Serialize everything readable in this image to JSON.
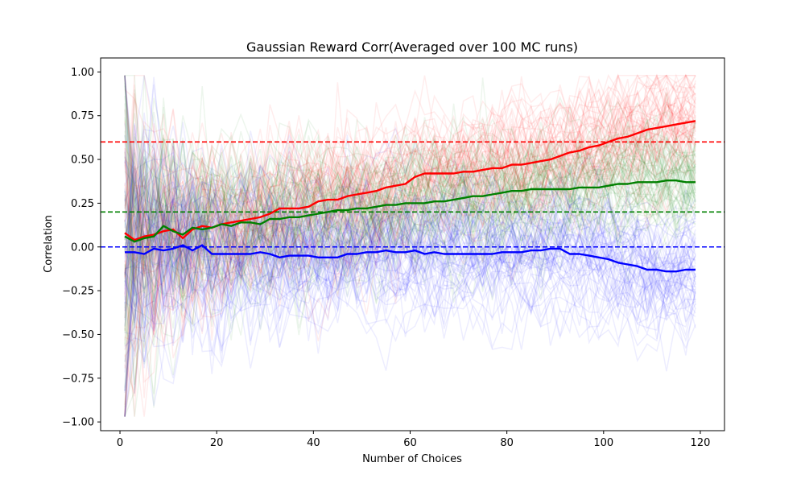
{
  "chart_data": {
    "type": "line",
    "title": "Gaussian Reward Corr(Averaged over 100 MC runs)",
    "xlabel": "Number of Choices",
    "ylabel": "Correlation",
    "xlim": [
      -4,
      125
    ],
    "ylim": [
      -1.05,
      1.08
    ],
    "x_ticks": [
      0,
      20,
      40,
      60,
      80,
      100,
      120
    ],
    "x_tick_labels": [
      "0",
      "20",
      "40",
      "60",
      "80",
      "100",
      "120"
    ],
    "y_ticks": [
      -1.0,
      -0.75,
      -0.5,
      -0.25,
      0.0,
      0.25,
      0.5,
      0.75,
      1.0
    ],
    "y_tick_labels": [
      "−1.00",
      "−0.75",
      "−0.50",
      "−0.25",
      "0.00",
      "0.25",
      "0.50",
      "0.75",
      "1.00"
    ],
    "grid": false,
    "reference_lines": [
      {
        "y": 0.6,
        "color": "#ff0000",
        "style": "dashed"
      },
      {
        "y": 0.2,
        "color": "#008000",
        "style": "dashed"
      },
      {
        "y": 0.0,
        "color": "#0000ff",
        "style": "dashed"
      }
    ],
    "runs": {
      "count_per_series": 100,
      "x_range": [
        1,
        119
      ],
      "opacity": 0.07
    },
    "series": [
      {
        "color": "#ff0000",
        "x": [
          1,
          3,
          5,
          7,
          9,
          11,
          13,
          15,
          17,
          19,
          21,
          23,
          25,
          27,
          29,
          31,
          33,
          35,
          37,
          39,
          41,
          43,
          45,
          47,
          49,
          51,
          53,
          55,
          57,
          59,
          61,
          63,
          65,
          67,
          69,
          71,
          73,
          75,
          77,
          79,
          81,
          83,
          85,
          87,
          89,
          91,
          93,
          95,
          97,
          99,
          101,
          103,
          105,
          107,
          109,
          111,
          113,
          115,
          117,
          119
        ],
        "values": [
          0.08,
          0.04,
          0.06,
          0.07,
          0.09,
          0.1,
          0.05,
          0.1,
          0.12,
          0.11,
          0.13,
          0.14,
          0.15,
          0.16,
          0.17,
          0.19,
          0.22,
          0.22,
          0.22,
          0.23,
          0.26,
          0.27,
          0.27,
          0.29,
          0.3,
          0.31,
          0.32,
          0.34,
          0.35,
          0.36,
          0.4,
          0.42,
          0.42,
          0.42,
          0.42,
          0.43,
          0.43,
          0.44,
          0.45,
          0.45,
          0.47,
          0.47,
          0.48,
          0.49,
          0.5,
          0.52,
          0.54,
          0.55,
          0.57,
          0.58,
          0.6,
          0.62,
          0.63,
          0.65,
          0.67,
          0.68,
          0.69,
          0.7,
          0.71,
          0.72
        ]
      },
      {
        "color": "#008000",
        "x": [
          1,
          3,
          5,
          7,
          9,
          11,
          13,
          15,
          17,
          19,
          21,
          23,
          25,
          27,
          29,
          31,
          33,
          35,
          37,
          39,
          41,
          43,
          45,
          47,
          49,
          51,
          53,
          55,
          57,
          59,
          61,
          63,
          65,
          67,
          69,
          71,
          73,
          75,
          77,
          79,
          81,
          83,
          85,
          87,
          89,
          91,
          93,
          95,
          97,
          99,
          101,
          103,
          105,
          107,
          109,
          111,
          113,
          115,
          117,
          119
        ],
        "values": [
          0.06,
          0.03,
          0.05,
          0.06,
          0.12,
          0.09,
          0.07,
          0.11,
          0.1,
          0.11,
          0.13,
          0.12,
          0.14,
          0.14,
          0.13,
          0.16,
          0.16,
          0.17,
          0.17,
          0.18,
          0.19,
          0.2,
          0.21,
          0.21,
          0.22,
          0.22,
          0.23,
          0.24,
          0.24,
          0.25,
          0.25,
          0.25,
          0.26,
          0.26,
          0.27,
          0.28,
          0.29,
          0.29,
          0.3,
          0.31,
          0.32,
          0.32,
          0.33,
          0.33,
          0.33,
          0.33,
          0.33,
          0.34,
          0.34,
          0.34,
          0.35,
          0.36,
          0.36,
          0.37,
          0.37,
          0.37,
          0.38,
          0.38,
          0.37,
          0.37
        ]
      },
      {
        "color": "#0000ff",
        "x": [
          1,
          3,
          5,
          7,
          9,
          11,
          13,
          15,
          17,
          19,
          21,
          23,
          25,
          27,
          29,
          31,
          33,
          35,
          37,
          39,
          41,
          43,
          45,
          47,
          49,
          51,
          53,
          55,
          57,
          59,
          61,
          63,
          65,
          67,
          69,
          71,
          73,
          75,
          77,
          79,
          81,
          83,
          85,
          87,
          89,
          91,
          93,
          95,
          97,
          99,
          101,
          103,
          105,
          107,
          109,
          111,
          113,
          115,
          117,
          119
        ],
        "values": [
          -0.03,
          -0.03,
          -0.04,
          -0.01,
          -0.02,
          -0.01,
          0.01,
          -0.02,
          0.01,
          -0.04,
          -0.04,
          -0.04,
          -0.04,
          -0.04,
          -0.03,
          -0.04,
          -0.06,
          -0.05,
          -0.05,
          -0.05,
          -0.06,
          -0.06,
          -0.06,
          -0.04,
          -0.04,
          -0.03,
          -0.03,
          -0.02,
          -0.03,
          -0.03,
          -0.02,
          -0.04,
          -0.03,
          -0.04,
          -0.04,
          -0.04,
          -0.04,
          -0.04,
          -0.04,
          -0.03,
          -0.03,
          -0.03,
          -0.02,
          -0.02,
          -0.01,
          -0.01,
          -0.04,
          -0.04,
          -0.05,
          -0.06,
          -0.07,
          -0.09,
          -0.1,
          -0.11,
          -0.13,
          -0.13,
          -0.14,
          -0.14,
          -0.13,
          -0.13
        ]
      }
    ]
  }
}
